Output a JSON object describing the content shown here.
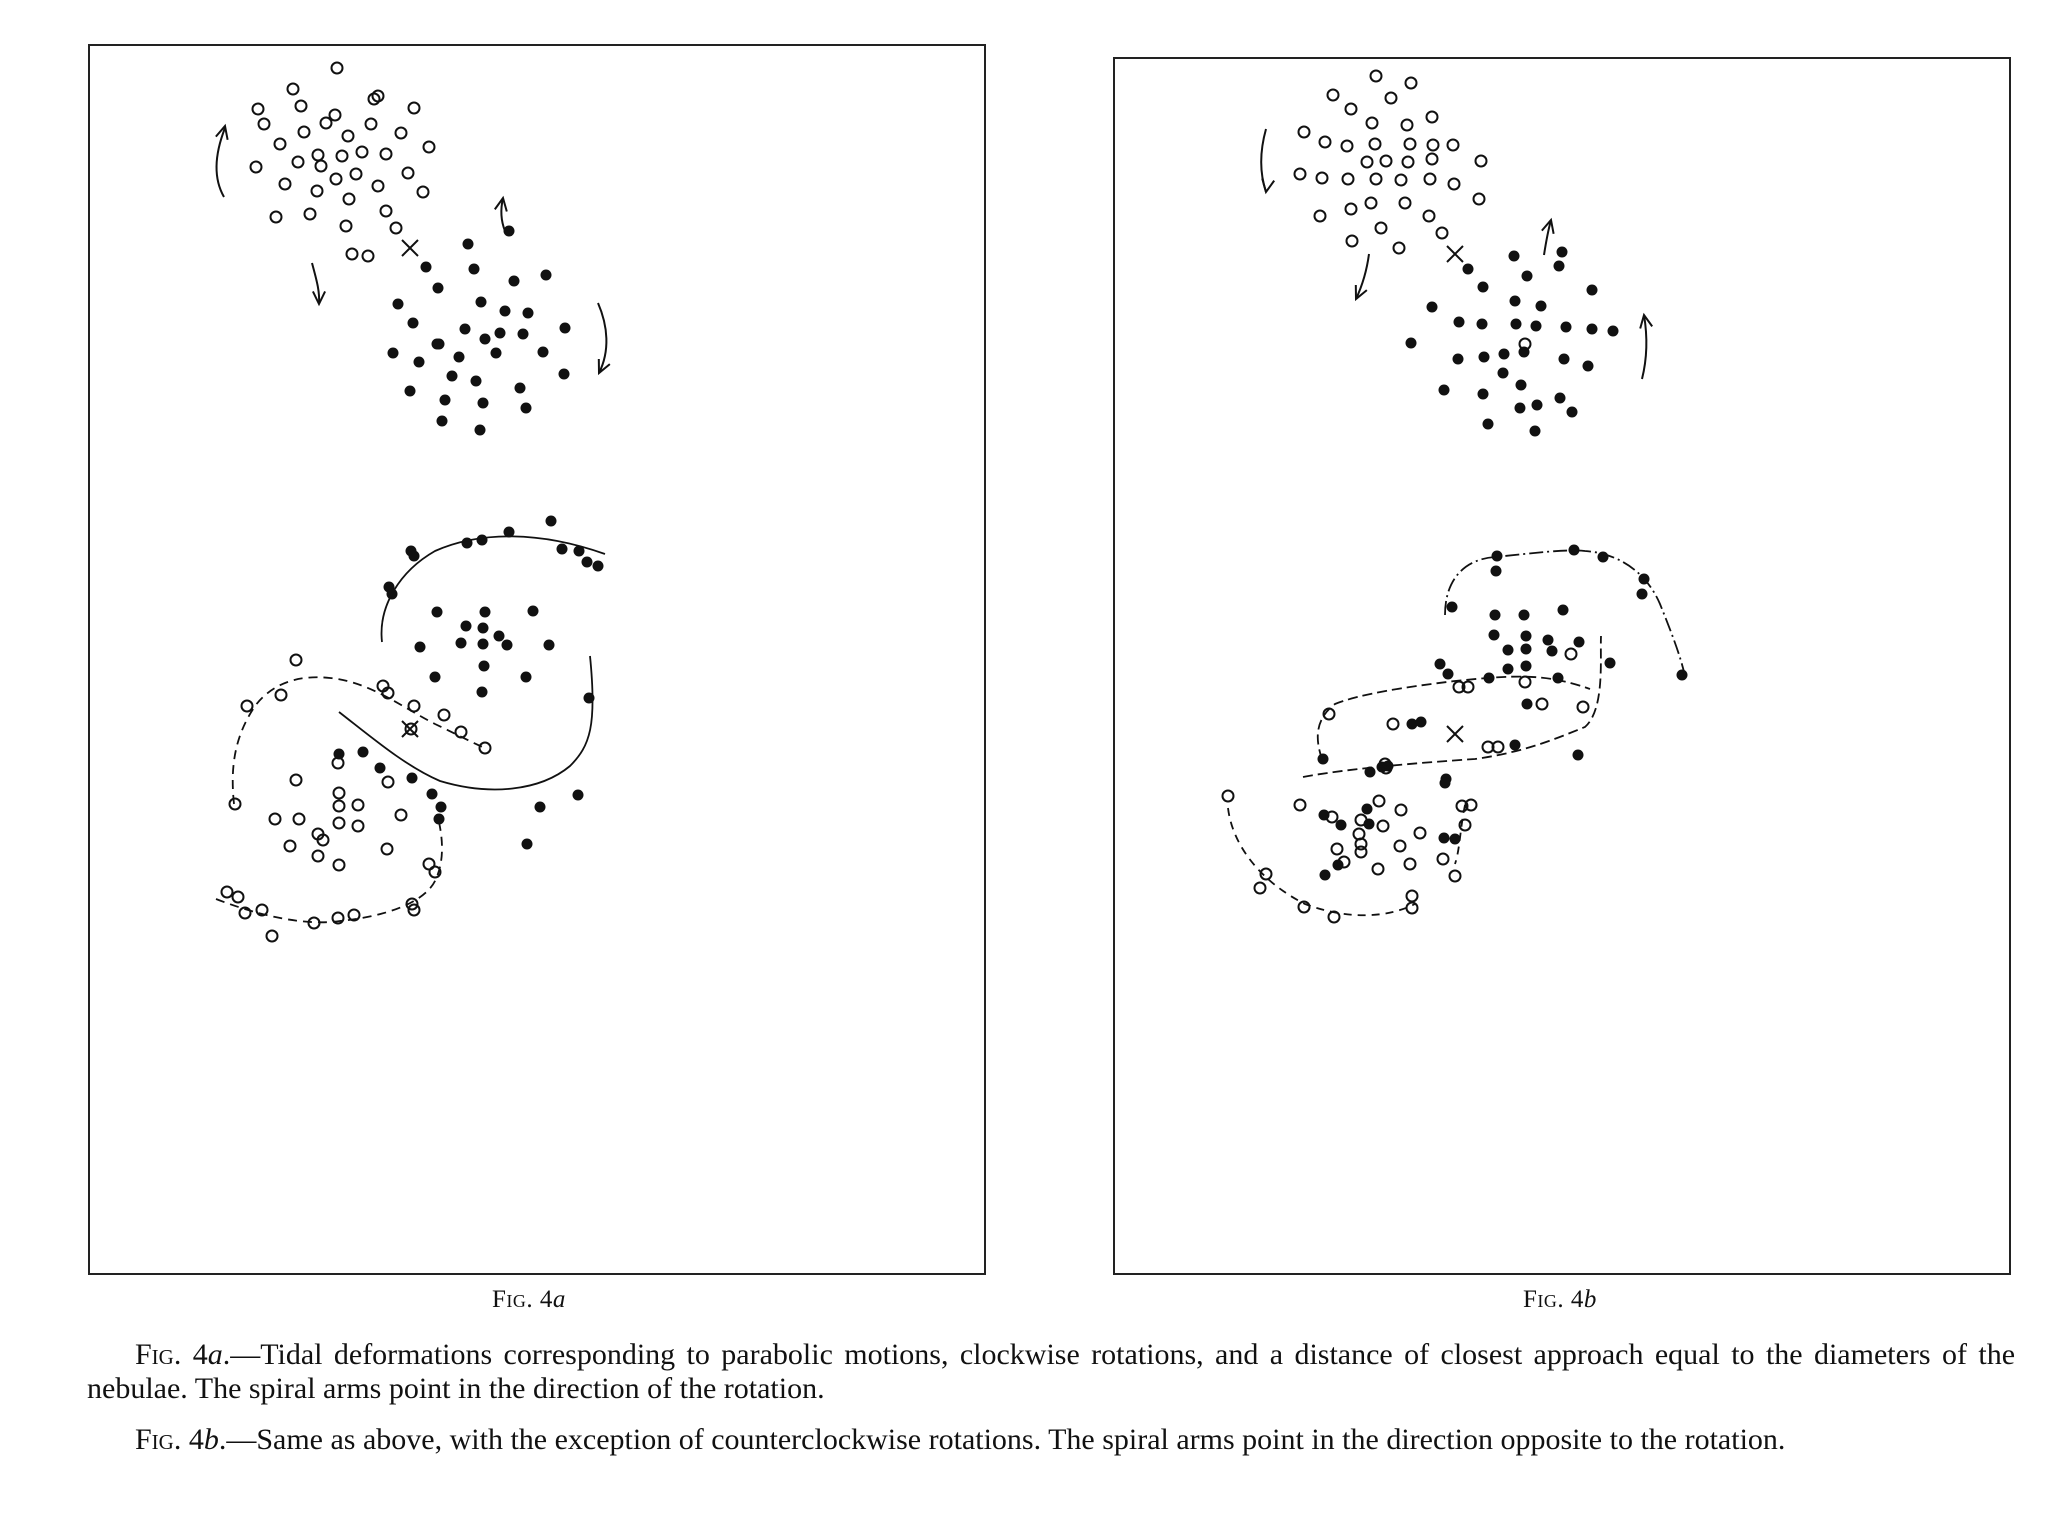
{
  "figures": [
    {
      "id": "a",
      "label_prefix": "Fig. 4",
      "label_suffix": "a"
    },
    {
      "id": "b",
      "label_prefix": "Fig. 4",
      "label_suffix": "b"
    }
  ],
  "captions": [
    {
      "prefix": "Fig. 4",
      "suffix": "a",
      "body": ".—Tidal deformations corresponding to parabolic motions, clockwise rotations, and a distance of closest approach equal to the diameters of the nebulae. The spiral arms point in the direction of the rotation."
    },
    {
      "prefix": "Fig. 4",
      "suffix": "b",
      "body": ".—Same as above, with the exception of counterclockwise rotations. The spiral arms point in the direction opposite to the rotation."
    }
  ],
  "colors": {
    "ink": "#111111",
    "paper": "#ffffff"
  }
}
